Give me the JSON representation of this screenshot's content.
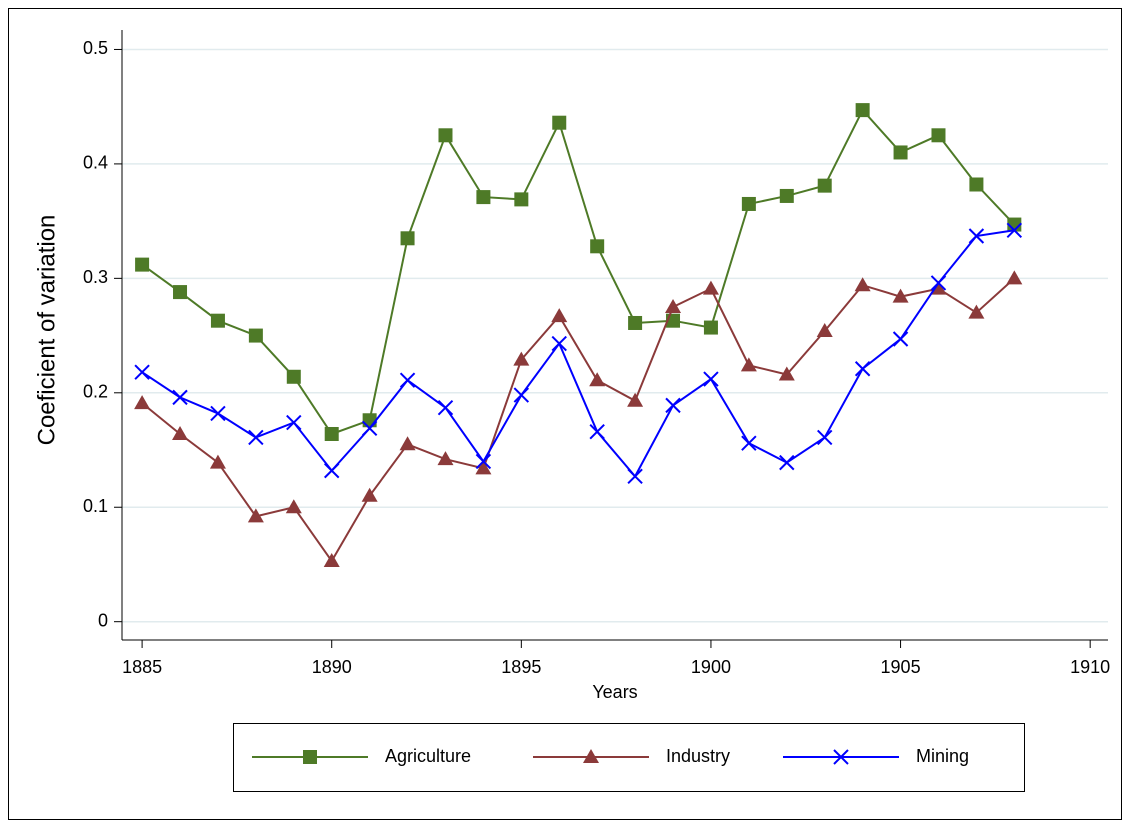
{
  "chart_data": {
    "type": "line",
    "x": [
      1885,
      1886,
      1887,
      1888,
      1889,
      1890,
      1891,
      1892,
      1893,
      1894,
      1895,
      1896,
      1897,
      1898,
      1899,
      1900,
      1901,
      1902,
      1903,
      1904,
      1905,
      1906,
      1907,
      1908
    ],
    "series": [
      {
        "name": "Agriculture",
        "color": "#4e7a27",
        "marker": "square",
        "values": [
          0.312,
          0.288,
          0.263,
          0.25,
          0.214,
          0.164,
          0.176,
          0.335,
          0.425,
          0.371,
          0.369,
          0.436,
          0.328,
          0.261,
          0.263,
          0.257,
          0.365,
          0.372,
          0.381,
          0.447,
          0.41,
          0.425,
          0.382,
          0.347
        ]
      },
      {
        "name": "Industry",
        "color": "#8b3a3a",
        "marker": "triangle",
        "values": [
          0.191,
          0.164,
          0.139,
          0.092,
          0.1,
          0.053,
          0.11,
          0.155,
          0.142,
          0.134,
          0.229,
          0.267,
          0.211,
          0.193,
          0.275,
          0.291,
          0.224,
          0.216,
          0.254,
          0.294,
          0.284,
          0.291,
          0.27,
          0.3
        ]
      },
      {
        "name": "Mining",
        "color": "#0000ff",
        "marker": "cross",
        "values": [
          0.218,
          0.196,
          0.182,
          0.161,
          0.174,
          0.132,
          0.169,
          0.211,
          0.187,
          0.14,
          0.198,
          0.243,
          0.166,
          0.127,
          0.189,
          0.212,
          0.156,
          0.139,
          0.161,
          0.221,
          0.247,
          0.296,
          0.337,
          0.342
        ]
      }
    ],
    "xlabel": "Years",
    "ylabel": "Coeficient of variation",
    "xlim": [
      1884.47,
      1910.47
    ],
    "xticks": [
      1885,
      1890,
      1895,
      1900,
      1905,
      1910
    ],
    "ylim": [
      -0.016,
      0.517
    ],
    "yticks": [
      0,
      0.1,
      0.2,
      0.3,
      0.4,
      0.5
    ],
    "grid": true,
    "legend": "bottom"
  }
}
